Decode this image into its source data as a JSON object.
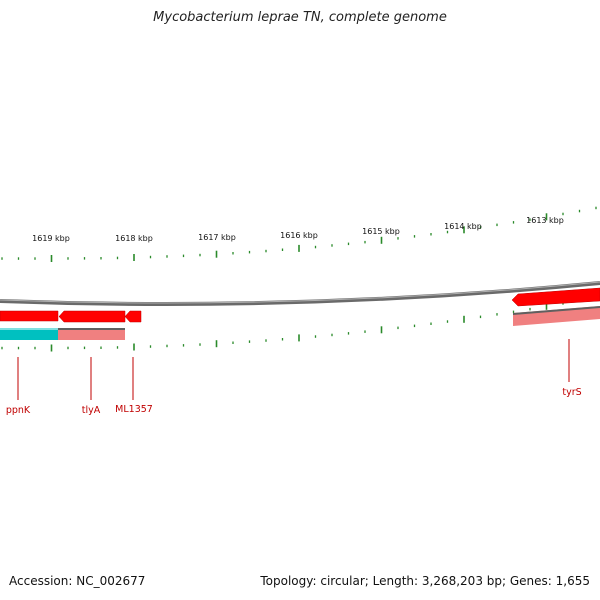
{
  "title": "Mycobacterium leprae TN, complete genome",
  "footer": {
    "accession": "Accession: NC_002677",
    "summary": "Topology: circular; Length: 3,268,203 bp; Genes: 1,655"
  },
  "colors": {
    "backbone": "#808080",
    "forward_gene": "#ff0000",
    "reverse_gene": "#f08080",
    "reverse_gene_alt": "#00c0c0",
    "tick": "#2a8a2a",
    "label": "#c00000"
  },
  "tick_labels": [
    "1619 kbp",
    "1618 kbp",
    "1617 kbp",
    "1616 kbp",
    "1615 kbp",
    "1614 kbp",
    "1613 kbp"
  ],
  "genes": [
    {
      "label": "ppnK",
      "strand": "forward"
    },
    {
      "label": "tlyA",
      "strand": "forward"
    },
    {
      "label": "ML1357",
      "strand": "forward"
    },
    {
      "label": "tyrS",
      "strand": "forward"
    }
  ]
}
